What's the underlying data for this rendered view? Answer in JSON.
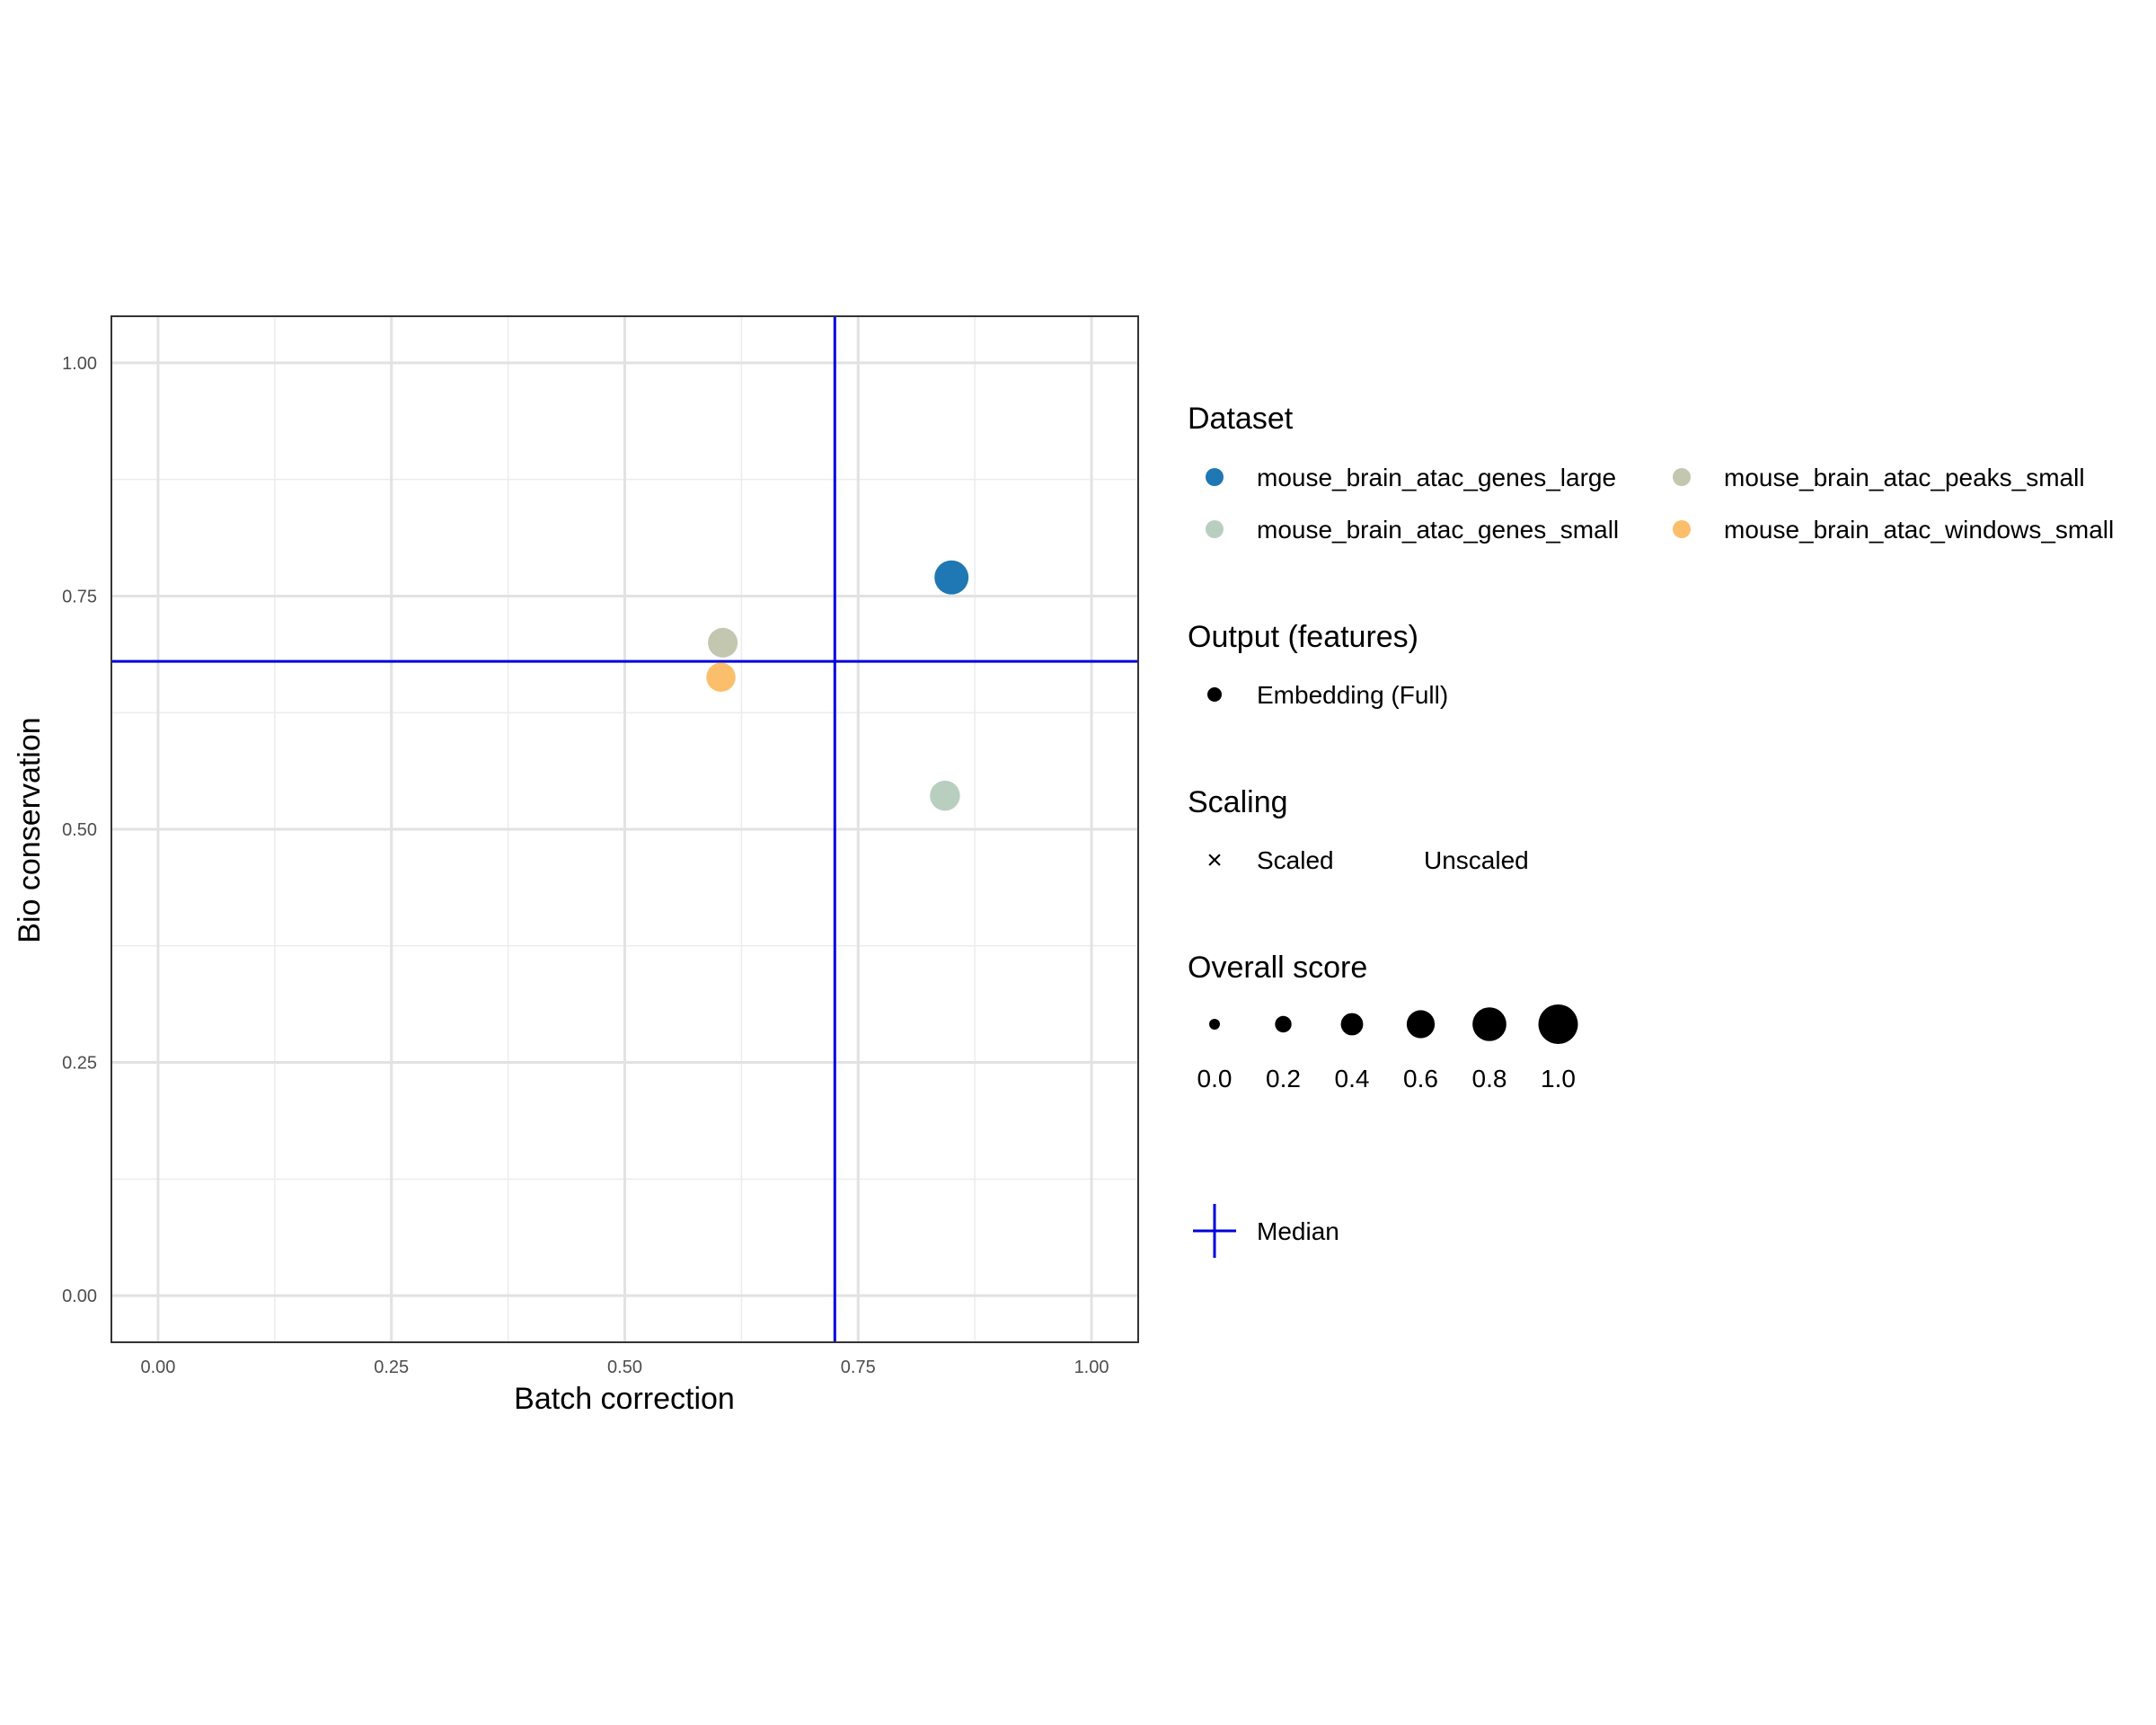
{
  "chart_data": {
    "type": "scatter",
    "title": "",
    "xlabel": "Batch correction",
    "ylabel": "Bio conservation",
    "xlim": [
      -0.05,
      1.05
    ],
    "ylim": [
      -0.05,
      1.05
    ],
    "x_ticks": [
      {
        "value": 0.0,
        "label": "0.00"
      },
      {
        "value": 0.25,
        "label": "0.25"
      },
      {
        "value": 0.5,
        "label": "0.50"
      },
      {
        "value": 0.75,
        "label": "0.75"
      },
      {
        "value": 1.0,
        "label": "1.00"
      }
    ],
    "y_ticks": [
      {
        "value": 0.0,
        "label": "0.00"
      },
      {
        "value": 0.25,
        "label": "0.25"
      },
      {
        "value": 0.5,
        "label": "0.50"
      },
      {
        "value": 0.75,
        "label": "0.75"
      },
      {
        "value": 1.0,
        "label": "1.00"
      }
    ],
    "grid": true,
    "median": {
      "x": 0.725,
      "y": 0.68,
      "color": "#0000dd"
    },
    "points": [
      {
        "dataset": "mouse_brain_atac_genes_large",
        "x": 0.85,
        "y": 0.77,
        "overall_score": 0.81,
        "output": "Embedding (Full)",
        "color": "#1f77b4"
      },
      {
        "dataset": "mouse_brain_atac_peaks_small",
        "x": 0.605,
        "y": 0.7,
        "overall_score": 0.66,
        "output": "Embedding (Full)",
        "color": "#c4c7b0"
      },
      {
        "dataset": "mouse_brain_atac_windows_small",
        "x": 0.603,
        "y": 0.663,
        "overall_score": 0.64,
        "output": "Embedding (Full)",
        "color": "#fbbf6c"
      },
      {
        "dataset": "mouse_brain_atac_genes_small",
        "x": 0.843,
        "y": 0.536,
        "overall_score": 0.67,
        "output": "Embedding (Full)",
        "color": "#b8cfc0"
      }
    ],
    "legend": {
      "placement": "right",
      "dataset": {
        "title": "Dataset",
        "entries": [
          {
            "label": "mouse_brain_atac_genes_large",
            "color": "#1f77b4"
          },
          {
            "label": "mouse_brain_atac_peaks_small",
            "color": "#c4c7b0"
          },
          {
            "label": "mouse_brain_atac_genes_small",
            "color": "#b8cfc0"
          },
          {
            "label": "mouse_brain_atac_windows_small",
            "color": "#fbbf6c"
          }
        ]
      },
      "output": {
        "title": "Output (features)",
        "entries": [
          {
            "label": "Embedding (Full)"
          }
        ]
      },
      "scaling": {
        "title": "Scaling",
        "entries": [
          {
            "label": "Scaled",
            "symbol": "×"
          },
          {
            "label": "Unscaled",
            "symbol": ""
          }
        ]
      },
      "overall_score": {
        "title": "Overall score",
        "entries": [
          {
            "value": 0.0,
            "label": "0.0"
          },
          {
            "value": 0.2,
            "label": "0.2"
          },
          {
            "value": 0.4,
            "label": "0.4"
          },
          {
            "value": 0.6,
            "label": "0.6"
          },
          {
            "value": 0.8,
            "label": "0.8"
          },
          {
            "value": 1.0,
            "label": "1.0"
          }
        ]
      },
      "median": {
        "label": "Median"
      }
    }
  }
}
